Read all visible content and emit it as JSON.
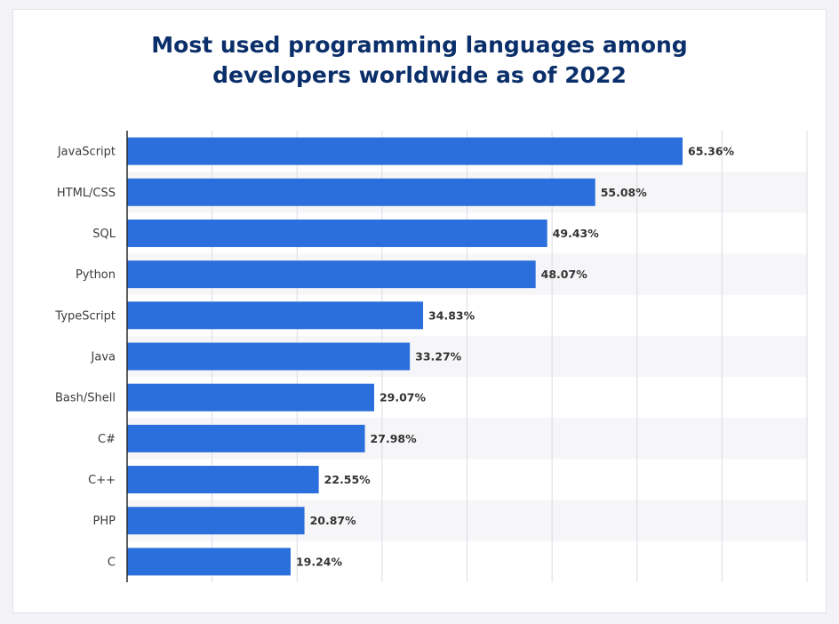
{
  "colors": {
    "bar": "#2a6fdb",
    "title": "#0b2f6a",
    "grid": "#dcdce2",
    "stripe": "#f6f6f8",
    "axis": "#2b2b2b"
  },
  "chart_data": {
    "type": "bar",
    "orientation": "horizontal",
    "title": "Most used programming languages among developers worldwide as of 2022",
    "title_lines": [
      "Most used programming languages among",
      "developers worldwide as of 2022"
    ],
    "categories": [
      "JavaScript",
      "HTML/CSS",
      "SQL",
      "Python",
      "TypeScript",
      "Java",
      "Bash/Shell",
      "C#",
      "C++",
      "PHP",
      "C"
    ],
    "values": [
      65.36,
      55.08,
      49.43,
      48.07,
      34.83,
      33.27,
      29.07,
      27.98,
      22.55,
      20.87,
      19.24
    ],
    "value_labels": [
      "65.36%",
      "55.08%",
      "49.43%",
      "48.07%",
      "34.83%",
      "33.27%",
      "29.07%",
      "27.98%",
      "22.55%",
      "20.87%",
      "19.24%"
    ],
    "xlim": [
      0,
      80
    ],
    "x_gridlines": [
      10,
      20,
      30,
      40,
      50,
      60,
      70,
      80
    ],
    "xlabel": "",
    "ylabel": "",
    "grid": true,
    "legend": "none"
  }
}
